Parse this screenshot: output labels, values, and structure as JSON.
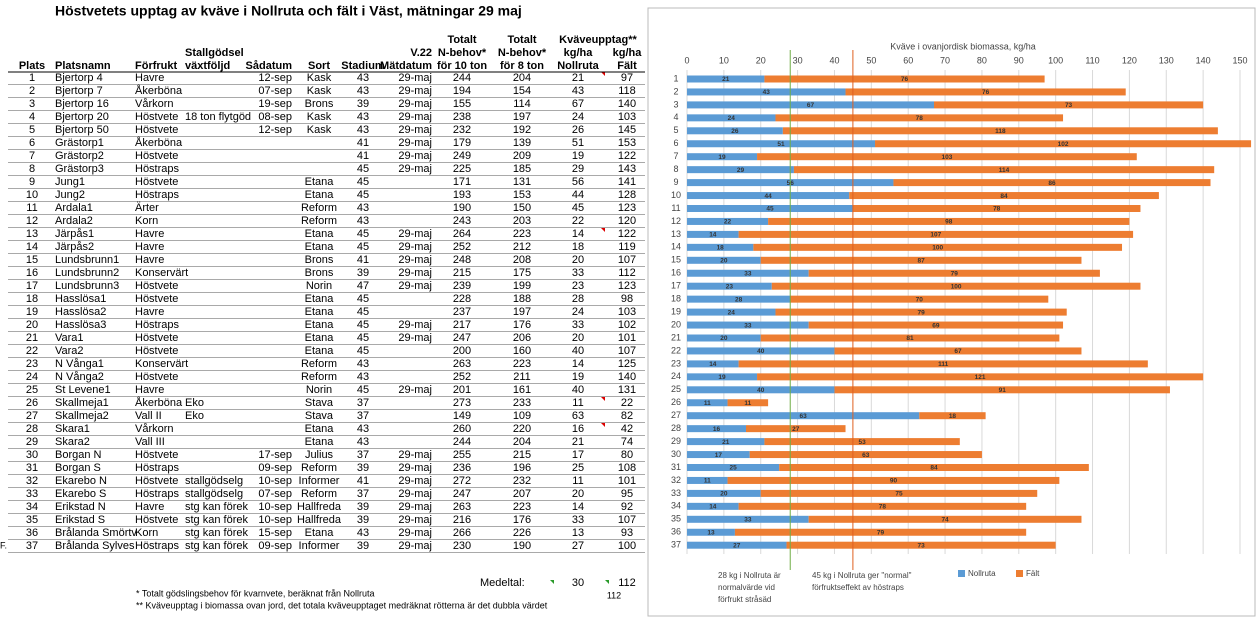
{
  "table": {
    "title": "Höstvetets upptag av kväve i Nollruta och fält i Väst, mätningar 29  maj",
    "header_group": "Kväveupptag**",
    "columns": [
      [
        "Plats"
      ],
      [
        "Platsnamn"
      ],
      [
        "Förfrukt"
      ],
      [
        "Stallgödsel",
        "växtföljd"
      ],
      [
        "Sådatum"
      ],
      [
        "Sort"
      ],
      [
        "Stadium"
      ],
      [
        "V.22",
        "Mätdatum"
      ],
      [
        "Totalt",
        "N-behov*",
        "för 10 ton"
      ],
      [
        "Totalt",
        "N-behov*",
        "för 8 ton"
      ],
      [
        "kg/ha",
        "Nollruta"
      ],
      [
        "kg/ha",
        "Fält"
      ]
    ],
    "rows": [
      [
        1,
        "Bjertorp 4",
        "Havre",
        null,
        "12-sep",
        "Kask",
        43,
        "29-maj",
        244,
        204,
        21,
        97
      ],
      [
        2,
        "Bjertorp 7",
        "Åkerböna",
        null,
        "07-sep",
        "Kask",
        43,
        "29-maj",
        194,
        154,
        43,
        118
      ],
      [
        3,
        "Bjertorp 16",
        "Vårkorn",
        null,
        "19-sep",
        "Brons",
        39,
        "29-maj",
        155,
        114,
        67,
        140
      ],
      [
        4,
        "Bjertorp 20",
        "Höstvete",
        "18 ton flytgöd",
        "08-sep",
        "Kask",
        43,
        "29-maj",
        238,
        197,
        24,
        103
      ],
      [
        5,
        "Bjertorp 50",
        "Höstvete",
        null,
        "12-sep",
        "Kask",
        43,
        "29-maj",
        232,
        192,
        26,
        145
      ],
      [
        6,
        "Grästorp1",
        "Åkerböna",
        null,
        null,
        null,
        41,
        "29-maj",
        179,
        139,
        51,
        153
      ],
      [
        7,
        "Grästorp2",
        "Höstvete",
        null,
        null,
        null,
        41,
        "29-maj",
        249,
        209,
        19,
        122
      ],
      [
        8,
        "Grästorp3",
        "Höstraps",
        null,
        null,
        null,
        45,
        "29-maj",
        225,
        185,
        29,
        143
      ],
      [
        9,
        "Jung1",
        "Höstvete",
        null,
        null,
        "Etana",
        45,
        null,
        171,
        131,
        56,
        141
      ],
      [
        10,
        "Jung2",
        "Höstraps",
        null,
        null,
        "Etana",
        45,
        null,
        193,
        153,
        44,
        128
      ],
      [
        11,
        "Ardala1",
        "Ärter",
        null,
        null,
        "Reform",
        43,
        null,
        190,
        150,
        45,
        123
      ],
      [
        12,
        "Ardala2",
        "Korn",
        null,
        null,
        "Reform",
        43,
        null,
        243,
        203,
        22,
        120
      ],
      [
        13,
        "Järpås1",
        "Havre",
        null,
        null,
        "Etana",
        45,
        "29-maj",
        264,
        223,
        14,
        122
      ],
      [
        14,
        "Järpås2",
        "Havre",
        null,
        null,
        "Etana",
        45,
        "29-maj",
        252,
        212,
        18,
        119
      ],
      [
        15,
        "Lundsbrunn1",
        "Havre",
        null,
        null,
        "Brons",
        41,
        "29-maj",
        248,
        208,
        20,
        107
      ],
      [
        16,
        "Lundsbrunn2",
        "Konservärt",
        null,
        null,
        "Brons",
        39,
        "29-maj",
        215,
        175,
        33,
        112
      ],
      [
        17,
        "Lundsbrunn3",
        "Höstvete",
        null,
        null,
        "Norin",
        47,
        "29-maj",
        239,
        199,
        23,
        123
      ],
      [
        18,
        "Hasslösa1",
        "Höstvete",
        null,
        null,
        "Etana",
        45,
        null,
        228,
        188,
        28,
        98
      ],
      [
        19,
        "Hasslösa2",
        "Havre",
        null,
        null,
        "Etana",
        45,
        null,
        237,
        197,
        24,
        103
      ],
      [
        20,
        "Hasslösa3",
        "Höstraps",
        null,
        null,
        "Etana",
        45,
        "29-maj",
        217,
        176,
        33,
        102
      ],
      [
        21,
        "Vara1",
        "Höstvete",
        null,
        null,
        "Etana",
        45,
        "29-maj",
        247,
        206,
        20,
        101
      ],
      [
        22,
        "Vara2",
        "Höstvete",
        null,
        null,
        "Etana",
        45,
        null,
        200,
        160,
        40,
        107
      ],
      [
        23,
        "N Vånga1",
        "Konservärt",
        null,
        null,
        "Reform",
        43,
        null,
        263,
        223,
        14,
        125
      ],
      [
        24,
        "N Vånga2",
        "Höstvete",
        null,
        null,
        "Reform",
        43,
        null,
        252,
        211,
        19,
        140
      ],
      [
        25,
        "St Levene1",
        "Havre",
        null,
        null,
        "Norin",
        45,
        "29-maj",
        201,
        161,
        40,
        131
      ],
      [
        26,
        "Skallmeja1",
        "Åkerböna",
        "Eko",
        null,
        "Stava",
        37,
        null,
        273,
        233,
        11,
        22
      ],
      [
        27,
        "Skallmeja2",
        "Vall II",
        "Eko",
        null,
        "Stava",
        37,
        null,
        149,
        109,
        63,
        82
      ],
      [
        28,
        "Skara1",
        "Vårkorn",
        null,
        null,
        "Etana",
        43,
        null,
        260,
        220,
        16,
        42
      ],
      [
        29,
        "Skara2",
        "Vall III",
        null,
        null,
        "Etana",
        43,
        null,
        244,
        204,
        21,
        74
      ],
      [
        30,
        "Borgan N",
        "Höstvete",
        null,
        "17-sep",
        "Julius",
        37,
        "29-maj",
        255,
        215,
        17,
        80
      ],
      [
        31,
        "Borgan S",
        "Höstraps",
        null,
        "09-sep",
        "Reform",
        39,
        "29-maj",
        236,
        196,
        25,
        108
      ],
      [
        32,
        "Ekarebo N",
        "Höstvete",
        "stallgödselg",
        "10-sep",
        "Informer",
        41,
        "29-maj",
        272,
        232,
        11,
        101
      ],
      [
        33,
        "Ekarebo S",
        "Höstraps",
        "stallgödselg",
        "07-sep",
        "Reform",
        37,
        "29-maj",
        247,
        207,
        20,
        95
      ],
      [
        34,
        "Erikstad N",
        "Havre",
        "stg kan förek",
        "10-sep",
        "Hallfreda",
        39,
        "29-maj",
        263,
        223,
        14,
        92
      ],
      [
        35,
        "Erikstad S",
        "Höstvete",
        "stg kan förek",
        "10-sep",
        "Hallfreda",
        39,
        "29-maj",
        216,
        176,
        33,
        107
      ],
      [
        36,
        "Brålanda Smörtv",
        "Korn",
        "stg kan förek",
        "15-sep",
        "Etana",
        43,
        "29-maj",
        266,
        226,
        13,
        93
      ],
      [
        37,
        "Brålanda Sylves",
        "Höstraps",
        "stg kan förek",
        "09-sep",
        "Informer",
        39,
        "29-maj",
        230,
        190,
        27,
        100
      ]
    ],
    "side_mark": "F.",
    "mean_label": "Medeltal:",
    "mean_nollruta": 30,
    "mean_falt": 112
  },
  "footnotes": [
    {
      "text": "* Totalt gödslingsbehov för kvarnvete, beräknat från Nollruta",
      "value": 112
    },
    {
      "text": "** Kväveupptag i biomassa ovan jord, det totala kväveupptaget medräknat rötterna är det dubbla värdet"
    }
  ],
  "chart_data": {
    "type": "bar",
    "orientation": "horizontal",
    "stacked": true,
    "title": "Kväve i ovanjordisk biomassa, kg/ha",
    "categories": [
      "1",
      "2",
      "3",
      "4",
      "5",
      "6",
      "7",
      "8",
      "9",
      "10",
      "11",
      "12",
      "13",
      "14",
      "15",
      "16",
      "17",
      "18",
      "19",
      "20",
      "21",
      "22",
      "23",
      "24",
      "25",
      "26",
      "27",
      "28",
      "29",
      "30",
      "31",
      "32",
      "33",
      "34",
      "35",
      "36",
      "37"
    ],
    "series": [
      {
        "name": "Nollruta",
        "color": "#5b9bd5",
        "values": [
          21,
          43,
          67,
          24,
          26,
          51,
          19,
          29,
          56,
          44,
          45,
          22,
          14,
          18,
          20,
          33,
          23,
          28,
          24,
          33,
          20,
          40,
          14,
          19,
          40,
          11,
          63,
          16,
          21,
          17,
          25,
          11,
          20,
          14,
          33,
          13,
          27
        ]
      },
      {
        "name": "Fält",
        "color": "#ed7d31",
        "values": [
          76,
          76,
          73,
          78,
          118,
          102,
          103,
          114,
          86,
          84,
          78,
          98,
          107,
          100,
          87,
          79,
          100,
          70,
          79,
          69,
          81,
          67,
          111,
          121,
          91,
          11,
          18,
          27,
          53,
          63,
          84,
          90,
          75,
          78,
          74,
          79,
          73
        ]
      }
    ],
    "xlim": [
      0,
      150
    ],
    "xticks": [
      0,
      10,
      20,
      30,
      40,
      50,
      60,
      70,
      80,
      90,
      100,
      110,
      120,
      130,
      140,
      150
    ],
    "grid": true,
    "legend": "bottom",
    "reference_lines": [
      {
        "value": 28,
        "color": "#70ad47",
        "label": [
          "28 kg i Nollruta är",
          "normalvärde vid",
          "förfrukt stråsäd"
        ]
      },
      {
        "value": 45,
        "color": "#e06020",
        "label": [
          "45 kg i Nollruta ger \"normal\"",
          "förfruktseffekt av höstraps"
        ]
      }
    ]
  }
}
